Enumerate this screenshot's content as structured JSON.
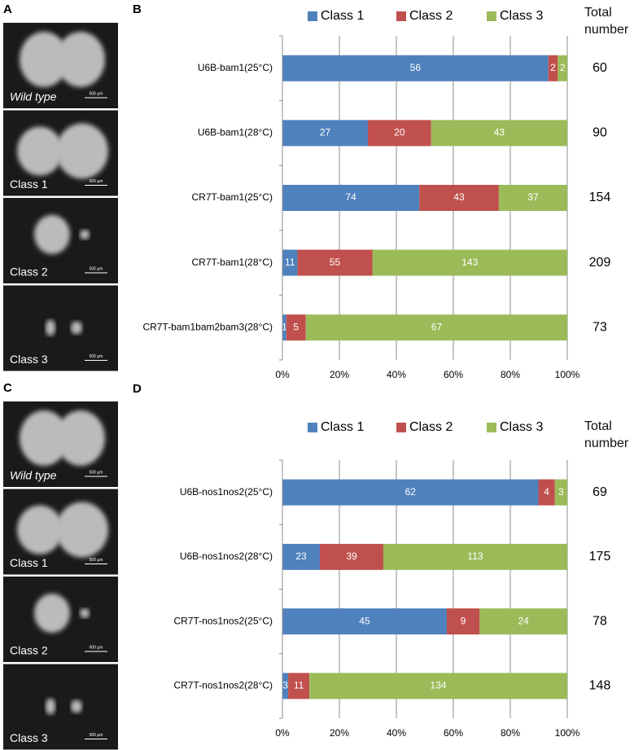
{
  "figure": {
    "panels": [
      {
        "letter": "A",
        "images": [
          {
            "label": "Wild type",
            "scale_bar": "500 µm"
          },
          {
            "label": "Class 1",
            "scale_bar": "500 µm"
          },
          {
            "label": "Class 2",
            "scale_bar": "500 µm"
          },
          {
            "label": "Class 3",
            "scale_bar": "500 µm"
          }
        ]
      },
      {
        "letter": "C",
        "images": [
          {
            "label": "Wild type",
            "scale_bar": "500 µm"
          },
          {
            "label": "Class 1",
            "scale_bar": "500 µm"
          },
          {
            "label": "Class 2",
            "scale_bar": "500 µm"
          },
          {
            "label": "Class 3",
            "scale_bar": "500 µm"
          }
        ]
      }
    ]
  },
  "chart_data": [
    {
      "type": "bar",
      "panel": "B",
      "orientation": "horizontal",
      "stacked": "percent",
      "categories": [
        "U6B-bam1(25°C)",
        "U6B-bam1(28°C)",
        "CR7T-bam1(25°C)",
        "CR7T-bam1(28°C)",
        "CR7T-bam1bam2bam3(28°C)"
      ],
      "series": [
        {
          "name": "Class 1",
          "color": "#4f81bd",
          "values": [
            56,
            27,
            74,
            11,
            1
          ]
        },
        {
          "name": "Class 2",
          "color": "#c0504d",
          "values": [
            2,
            20,
            43,
            55,
            5
          ]
        },
        {
          "name": "Class 3",
          "color": "#9bbb59",
          "values": [
            2,
            43,
            37,
            143,
            67
          ]
        }
      ],
      "totals_label": "Total number",
      "totals": [
        60,
        90,
        154,
        209,
        73
      ],
      "xlim": [
        0,
        100
      ],
      "xticks": [
        {
          "value": 0,
          "label": "0%"
        },
        {
          "value": 20,
          "label": "20%"
        },
        {
          "value": 40,
          "label": "40%"
        },
        {
          "value": 60,
          "label": "60%"
        },
        {
          "value": 80,
          "label": "80%"
        },
        {
          "value": 100,
          "label": "100%"
        }
      ],
      "grid": true,
      "legend": "top"
    },
    {
      "type": "bar",
      "panel": "D",
      "orientation": "horizontal",
      "stacked": "percent",
      "categories": [
        "U6B-nos1nos2(25°C)",
        "U6B-nos1nos2(28°C)",
        "CR7T-nos1nos2(25°C)",
        "CR7T-nos1nos2(28°C)"
      ],
      "series": [
        {
          "name": "Class 1",
          "color": "#4f81bd",
          "values": [
            62,
            23,
            45,
            3
          ]
        },
        {
          "name": "Class 2",
          "color": "#c0504d",
          "values": [
            4,
            39,
            9,
            11
          ]
        },
        {
          "name": "Class 3",
          "color": "#9bbb59",
          "values": [
            3,
            113,
            24,
            134
          ]
        }
      ],
      "totals_label": "Total number",
      "totals": [
        69,
        175,
        78,
        148
      ],
      "xlim": [
        0,
        100
      ],
      "xticks": [
        {
          "value": 0,
          "label": "0%"
        },
        {
          "value": 20,
          "label": "20%"
        },
        {
          "value": 40,
          "label": "40%"
        },
        {
          "value": 60,
          "label": "60%"
        },
        {
          "value": 80,
          "label": "80%"
        },
        {
          "value": 100,
          "label": "100%"
        }
      ],
      "grid": true,
      "legend": "top"
    }
  ]
}
